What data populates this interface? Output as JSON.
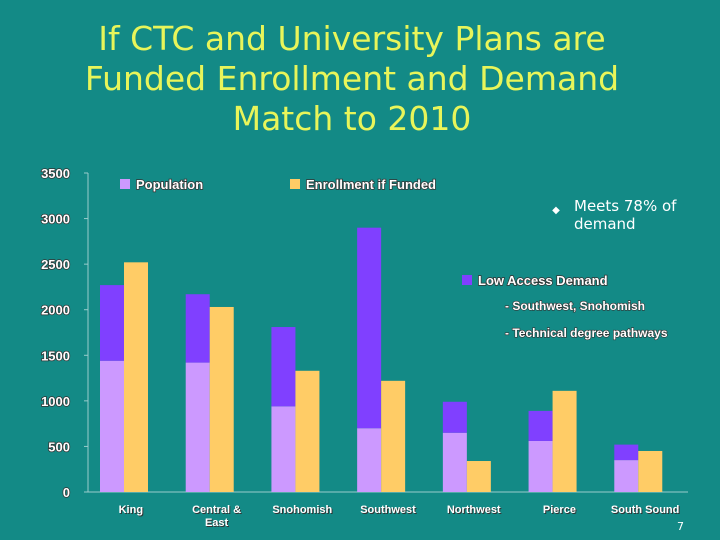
{
  "chart_data": {
    "type": "bar",
    "title": [
      "If CTC and University Plans are",
      "Funded Enrollment and Demand",
      "Match to 2010"
    ],
    "categories": [
      "King",
      "Central & East",
      "Snohomish",
      "Southwest",
      "Northwest",
      "Pierce",
      "South Sound"
    ],
    "series": [
      {
        "name": "Population",
        "color": "#cc99ff",
        "stack": "a",
        "values": [
          1440,
          1420,
          940,
          700,
          650,
          560,
          350
        ]
      },
      {
        "name": "Low Access Demand",
        "color": "#8040ff",
        "stack": "a",
        "values": [
          830,
          750,
          870,
          2200,
          340,
          330,
          170
        ]
      },
      {
        "name": "Enrollment if Funded",
        "color": "#ffcc66",
        "stack": "b",
        "values": [
          2520,
          2030,
          1330,
          1220,
          340,
          1110,
          450
        ]
      }
    ],
    "ylim": [
      0,
      3500
    ],
    "yticks": [
      0,
      500,
      1000,
      1500,
      2000,
      2500,
      3000,
      3500
    ],
    "annotations": [
      "Meets 78% of demand",
      "- Southwest, Snohomish",
      "- Technical degree pathways"
    ]
  },
  "slide_number": "7"
}
